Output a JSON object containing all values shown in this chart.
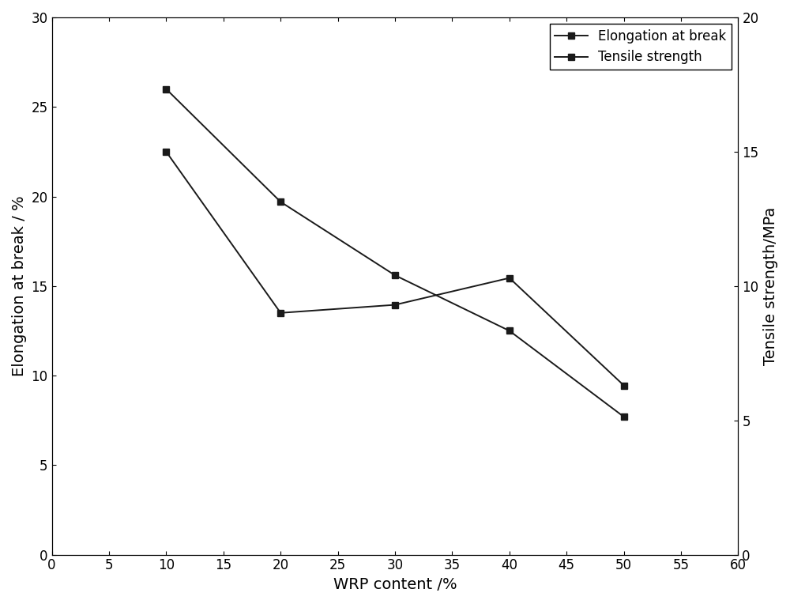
{
  "x": [
    10,
    20,
    30,
    40,
    50
  ],
  "elongation_at_break": [
    26.0,
    19.7,
    15.6,
    12.5,
    7.7
  ],
  "tensile_strength": [
    15.0,
    9.0,
    9.3,
    10.3,
    6.3
  ],
  "xlabel": "WRP content /%",
  "ylabel_left": "Elongation at break / %",
  "ylabel_right": "Tensile strength/MPa",
  "xlim": [
    0,
    60
  ],
  "ylim_left": [
    0,
    30
  ],
  "ylim_right": [
    0,
    20
  ],
  "xticks": [
    0,
    5,
    10,
    15,
    20,
    25,
    30,
    35,
    40,
    45,
    50,
    55,
    60
  ],
  "yticks_left": [
    0,
    5,
    10,
    15,
    20,
    25,
    30
  ],
  "yticks_right": [
    0,
    5,
    10,
    15,
    20
  ],
  "legend_labels": [
    "Elongation at break",
    "Tensile strength"
  ],
  "line_color": "#1a1a1a",
  "marker": "s",
  "marker_size": 6,
  "linewidth": 1.4,
  "background_color": "#ffffff",
  "legend_loc": "upper right",
  "label_fontsize": 14,
  "tick_fontsize": 12,
  "legend_fontsize": 12
}
